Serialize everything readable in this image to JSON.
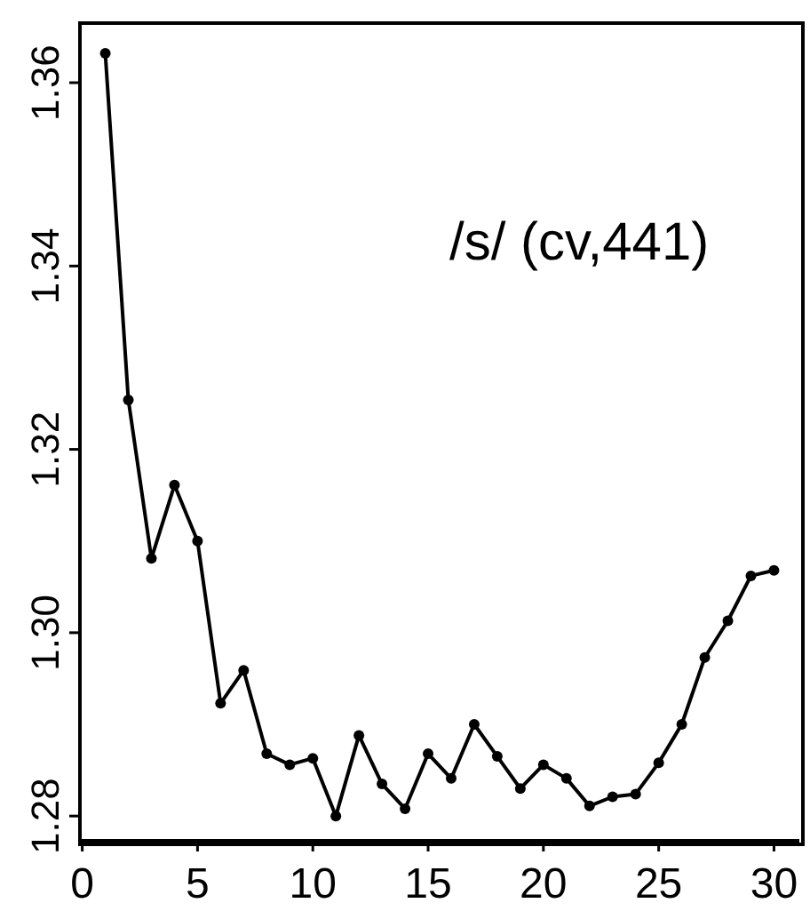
{
  "chart_data": {
    "type": "line",
    "x": [
      1,
      2,
      3,
      4,
      5,
      6,
      7,
      8,
      9,
      10,
      11,
      12,
      13,
      14,
      15,
      16,
      17,
      18,
      19,
      20,
      21,
      22,
      23,
      24,
      25,
      26,
      27,
      28,
      29,
      30
    ],
    "series": [
      {
        "color": "#000000",
        "values": [
          1.3632,
          1.3254,
          1.3081,
          1.3161,
          1.31,
          1.2923,
          1.2959,
          1.2868,
          1.2856,
          1.2863,
          1.28,
          1.2888,
          1.2835,
          1.2808,
          1.2868,
          1.2841,
          1.29,
          1.2865,
          1.283,
          1.2856,
          1.2841,
          1.2811,
          1.2821,
          1.2824,
          1.2858,
          1.29,
          1.2973,
          1.3013,
          1.3062,
          1.3068
        ]
      }
    ],
    "xlim": [
      -0.1,
      31.1
    ],
    "xticks": [
      0,
      5,
      10,
      15,
      20,
      25,
      30
    ],
    "ylim": [
      1.2773,
      1.3665
    ],
    "yticks": [
      1.28,
      {
        "value": 1.3,
        "label": "1.30"
      },
      1.32,
      1.34,
      1.36
    ],
    "marker": "circle",
    "annotations": [
      "/s/ (cv,441)"
    ]
  }
}
